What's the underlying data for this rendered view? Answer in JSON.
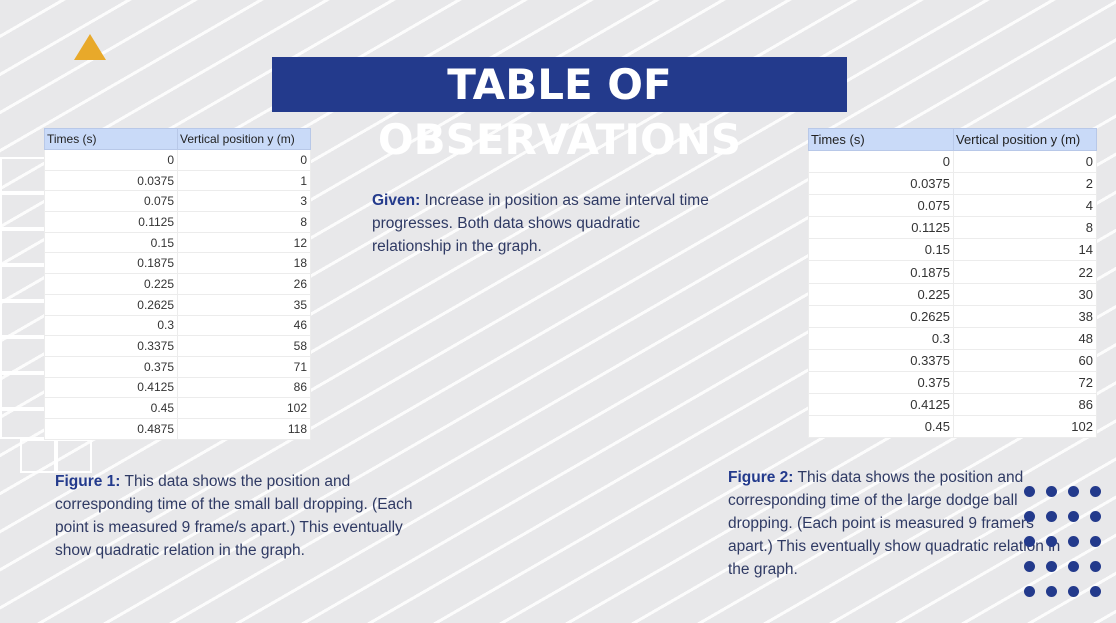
{
  "title": "TABLE OF OBSERVATIONS",
  "colors": {
    "title_bg": "#233a8c",
    "accent_triangle": "#e8a92a",
    "header_bg": "#c9daf8",
    "dots": "#233a8c"
  },
  "table1": {
    "headers": [
      "Times (s)",
      "Vertical position y (m)"
    ],
    "rows": [
      [
        "0",
        "0"
      ],
      [
        "0.0375",
        "1"
      ],
      [
        "0.075",
        "3"
      ],
      [
        "0.1125",
        "8"
      ],
      [
        "0.15",
        "12"
      ],
      [
        "0.1875",
        "18"
      ],
      [
        "0.225",
        "26"
      ],
      [
        "0.2625",
        "35"
      ],
      [
        "0.3",
        "46"
      ],
      [
        "0.3375",
        "58"
      ],
      [
        "0.375",
        "71"
      ],
      [
        "0.4125",
        "86"
      ],
      [
        "0.45",
        "102"
      ],
      [
        "0.4875",
        "118"
      ]
    ]
  },
  "table2": {
    "headers": [
      "Times (s)",
      "Vertical position y (m)"
    ],
    "rows": [
      [
        "0",
        "0"
      ],
      [
        "0.0375",
        "2"
      ],
      [
        "0.075",
        "4"
      ],
      [
        "0.1125",
        "8"
      ],
      [
        "0.15",
        "14"
      ],
      [
        "0.1875",
        "22"
      ],
      [
        "0.225",
        "30"
      ],
      [
        "0.2625",
        "38"
      ],
      [
        "0.3",
        "48"
      ],
      [
        "0.3375",
        "60"
      ],
      [
        "0.375",
        "72"
      ],
      [
        "0.4125",
        "86"
      ],
      [
        "0.45",
        "102"
      ]
    ]
  },
  "given": {
    "label": "Given:",
    "text": " Increase in position as same interval time progresses. Both data shows quadratic relationship in the graph."
  },
  "figure1": {
    "label": "Figure 1:",
    "text": " This data shows the position and corresponding time of the small ball dropping. (Each point is measured 9 frame/s apart.) This eventually show quadratic relation in the graph."
  },
  "figure2": {
    "label": "Figure 2:",
    "text": " This data shows the position and corresponding time of the large dodge ball dropping. (Each point is measured 9 framers apart.) This eventually show quadratic relation in the graph."
  }
}
